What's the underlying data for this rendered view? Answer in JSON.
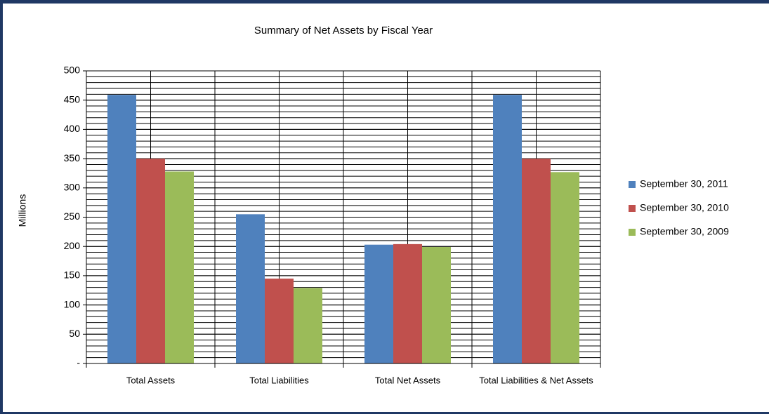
{
  "chart_data": {
    "type": "bar",
    "title": "Summary of Net Assets by Fiscal Year",
    "y_label": "Millions",
    "categories": [
      "Total Assets",
      "Total Liabilities",
      "Total Net Assets",
      "Total Liabilities & Net Assets"
    ],
    "series": [
      {
        "name": "September 30, 2011",
        "color": "#4f81bd",
        "values": [
          459,
          255,
          203,
          459
        ]
      },
      {
        "name": "September 30, 2010",
        "color": "#c0504d",
        "values": [
          350,
          145,
          204,
          350
        ]
      },
      {
        "name": "September 30, 2009",
        "color": "#9bbb59",
        "values": [
          328,
          129,
          199,
          327
        ]
      }
    ],
    "ylim": [
      0,
      500
    ],
    "yticks": [
      {
        "value": 0,
        "label": "-"
      },
      50,
      100,
      150,
      200,
      250,
      300,
      350,
      400,
      450,
      500
    ],
    "minor_yticks": [
      0,
      10,
      20,
      30,
      40,
      50,
      60,
      70,
      80,
      90,
      100,
      110,
      120,
      130,
      140,
      150,
      160,
      170,
      180,
      190,
      200,
      210,
      220,
      230,
      240,
      250,
      260,
      270,
      280,
      290,
      300,
      310,
      320,
      330,
      340,
      350,
      360,
      370,
      380,
      390,
      400,
      410,
      420,
      430,
      440,
      450,
      460,
      470,
      480,
      490,
      500
    ],
    "grid": true,
    "legend": "right"
  }
}
